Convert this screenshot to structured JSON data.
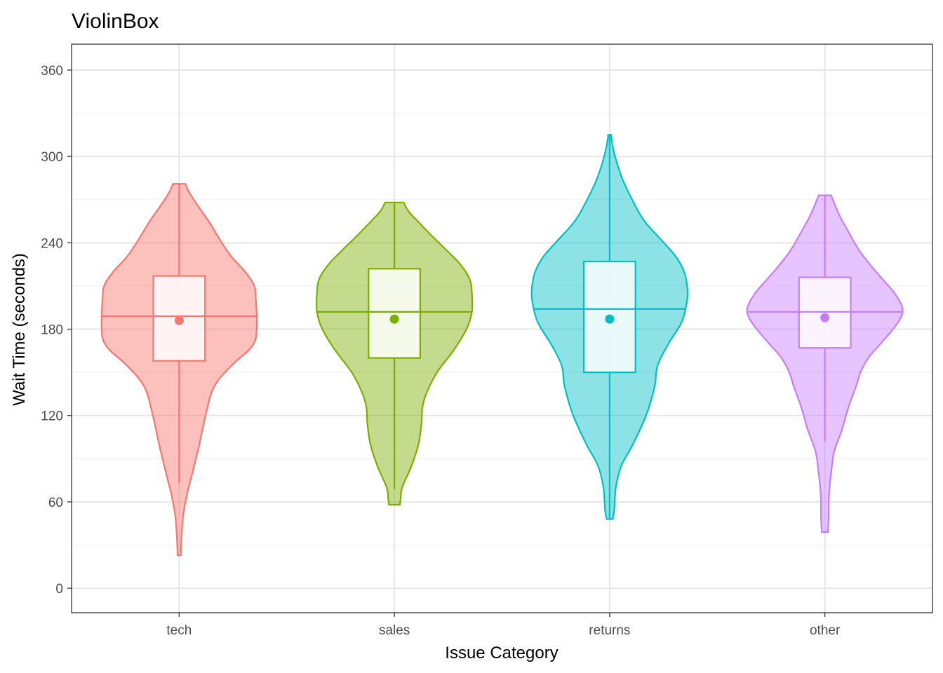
{
  "chart_data": {
    "type": "violin",
    "title": "ViolinBox",
    "xlabel": "Issue Category",
    "ylabel": "Wait Time (seconds)",
    "ylim": [
      -17,
      378
    ],
    "yticks": [
      0,
      60,
      120,
      180,
      240,
      300,
      360
    ],
    "ytick_labels": [
      "0",
      "60",
      "120",
      "180",
      "240",
      "300",
      "360"
    ],
    "grid": true,
    "categories": [
      "tech",
      "sales",
      "returns",
      "other"
    ],
    "series": [
      {
        "category": "tech",
        "color": "#F8766D",
        "min": 23,
        "max": 281,
        "whisker_low": 73,
        "whisker_high": 281,
        "q1": 158,
        "median": 189,
        "q3": 217,
        "mean": 186,
        "density": [
          [
            23,
            0.02
          ],
          [
            35,
            0.03
          ],
          [
            50,
            0.05
          ],
          [
            65,
            0.1
          ],
          [
            80,
            0.17
          ],
          [
            100,
            0.26
          ],
          [
            120,
            0.34
          ],
          [
            140,
            0.45
          ],
          [
            155,
            0.68
          ],
          [
            165,
            0.89
          ],
          [
            172,
            0.98
          ],
          [
            180,
            1.0
          ],
          [
            190,
            1.0
          ],
          [
            200,
            0.99
          ],
          [
            210,
            0.97
          ],
          [
            220,
            0.85
          ],
          [
            230,
            0.68
          ],
          [
            240,
            0.55
          ],
          [
            255,
            0.38
          ],
          [
            265,
            0.25
          ],
          [
            275,
            0.13
          ],
          [
            281,
            0.08
          ]
        ]
      },
      {
        "category": "sales",
        "color": "#7CAE00",
        "min": 58,
        "max": 268,
        "whisker_low": 69,
        "whisker_high": 268,
        "q1": 160,
        "median": 192,
        "q3": 222,
        "mean": 187,
        "density": [
          [
            58,
            0.07
          ],
          [
            62,
            0.08
          ],
          [
            70,
            0.1
          ],
          [
            85,
            0.22
          ],
          [
            100,
            0.31
          ],
          [
            115,
            0.35
          ],
          [
            125,
            0.36
          ],
          [
            135,
            0.41
          ],
          [
            150,
            0.55
          ],
          [
            165,
            0.76
          ],
          [
            180,
            0.93
          ],
          [
            192,
            1.0
          ],
          [
            205,
            1.0
          ],
          [
            215,
            0.97
          ],
          [
            225,
            0.85
          ],
          [
            235,
            0.67
          ],
          [
            245,
            0.48
          ],
          [
            255,
            0.3
          ],
          [
            262,
            0.18
          ],
          [
            268,
            0.12
          ]
        ]
      },
      {
        "category": "returns",
        "color": "#00BFC4",
        "min": 48,
        "max": 315,
        "whisker_low": 48,
        "whisker_high": 315,
        "q1": 150,
        "median": 194,
        "q3": 227,
        "mean": 187,
        "density": [
          [
            48,
            0.04
          ],
          [
            55,
            0.06
          ],
          [
            70,
            0.08
          ],
          [
            85,
            0.15
          ],
          [
            100,
            0.3
          ],
          [
            120,
            0.47
          ],
          [
            140,
            0.58
          ],
          [
            155,
            0.62
          ],
          [
            170,
            0.76
          ],
          [
            185,
            0.93
          ],
          [
            200,
            1.0
          ],
          [
            210,
            1.0
          ],
          [
            220,
            0.96
          ],
          [
            230,
            0.86
          ],
          [
            240,
            0.7
          ],
          [
            255,
            0.45
          ],
          [
            270,
            0.29
          ],
          [
            285,
            0.16
          ],
          [
            300,
            0.07
          ],
          [
            310,
            0.03
          ],
          [
            315,
            0.02
          ]
        ]
      },
      {
        "category": "other",
        "color": "#C77CFF",
        "min": 39,
        "max": 273,
        "whisker_low": 102,
        "whisker_high": 273,
        "q1": 167,
        "median": 192,
        "q3": 216,
        "mean": 188,
        "density": [
          [
            39,
            0.04
          ],
          [
            50,
            0.05
          ],
          [
            60,
            0.05
          ],
          [
            70,
            0.06
          ],
          [
            80,
            0.08
          ],
          [
            95,
            0.12
          ],
          [
            110,
            0.22
          ],
          [
            125,
            0.3
          ],
          [
            140,
            0.4
          ],
          [
            150,
            0.46
          ],
          [
            160,
            0.56
          ],
          [
            170,
            0.72
          ],
          [
            180,
            0.88
          ],
          [
            188,
            0.98
          ],
          [
            195,
            1.0
          ],
          [
            205,
            0.9
          ],
          [
            215,
            0.74
          ],
          [
            225,
            0.58
          ],
          [
            235,
            0.44
          ],
          [
            248,
            0.3
          ],
          [
            260,
            0.18
          ],
          [
            273,
            0.08
          ]
        ]
      }
    ]
  }
}
